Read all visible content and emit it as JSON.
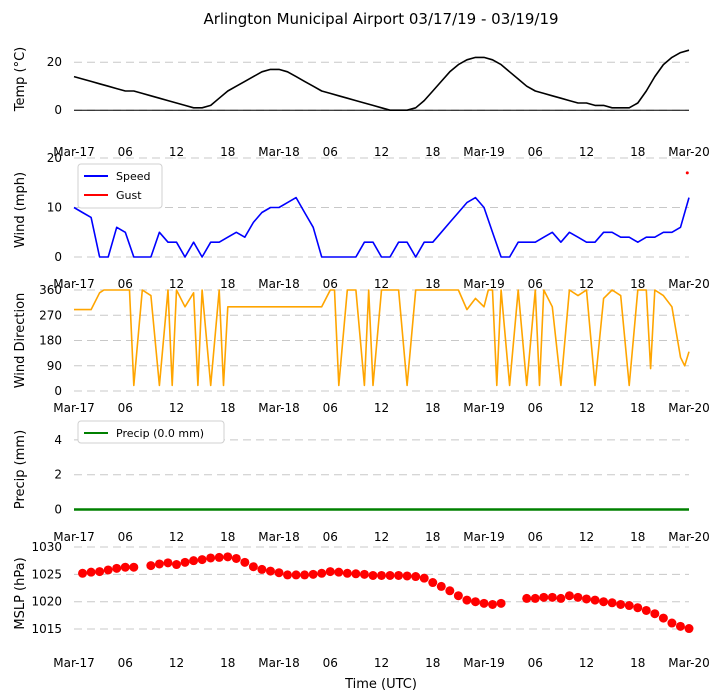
{
  "figure": {
    "title": "Arlington Municipal Airport 03/17/19 - 03/19/19",
    "xlabel": "Time (UTC)"
  },
  "chart_data": [
    {
      "type": "line",
      "name": "temperature",
      "ylabel": "Temp ($^\\circ$C)",
      "ylabel_display": "Temp (°C)",
      "ylim": [
        -2,
        28
      ],
      "yticks": [
        0,
        20
      ],
      "zero_line": true,
      "x_range": [
        0,
        72
      ],
      "xtick_labels": [
        "Mar-17",
        "06",
        "12",
        "18",
        "Mar-18",
        "06",
        "12",
        "18",
        "Mar-19",
        "06",
        "12",
        "18",
        "Mar-20"
      ],
      "series": [
        {
          "name": "Temp",
          "color": "#000000",
          "x": [
            0,
            1,
            2,
            3,
            4,
            5,
            6,
            7,
            8,
            9,
            10,
            11,
            12,
            13,
            14,
            15,
            16,
            17,
            18,
            19,
            20,
            21,
            22,
            23,
            24,
            25,
            26,
            27,
            28,
            29,
            30,
            31,
            32,
            33,
            34,
            35,
            36,
            37,
            38,
            39,
            40,
            41,
            42,
            43,
            44,
            45,
            46,
            47,
            48,
            49,
            50,
            51,
            52,
            53,
            54,
            55,
            56,
            57,
            58,
            59,
            60,
            61,
            62,
            63,
            64,
            65,
            66,
            67,
            68,
            69,
            70,
            71,
            72
          ],
          "values": [
            14,
            13,
            12,
            11,
            10,
            9,
            8,
            8,
            7,
            6,
            5,
            4,
            3,
            2,
            1,
            1,
            2,
            5,
            8,
            10,
            12,
            14,
            16,
            17,
            17,
            16,
            14,
            12,
            10,
            8,
            7,
            6,
            5,
            4,
            3,
            2,
            1,
            0,
            0,
            0,
            1,
            4,
            8,
            12,
            16,
            19,
            21,
            22,
            22,
            21,
            19,
            16,
            13,
            10,
            8,
            7,
            6,
            5,
            4,
            3,
            3,
            2,
            2,
            1,
            1,
            1,
            3,
            8,
            14,
            19,
            22,
            24,
            25
          ]
        }
      ]
    },
    {
      "type": "line",
      "name": "wind",
      "ylabel": "Wind (mph)",
      "ylim": [
        -1,
        20
      ],
      "yticks": [
        0,
        10,
        20
      ],
      "x_range": [
        0,
        72
      ],
      "xtick_labels": [
        "Mar-17",
        "06",
        "12",
        "18",
        "Mar-18",
        "06",
        "12",
        "18",
        "Mar-19",
        "06",
        "12",
        "18",
        "Mar-20"
      ],
      "legend": [
        "Speed",
        "Gust"
      ],
      "series": [
        {
          "name": "Speed",
          "color": "#0000ff",
          "x": [
            0,
            1,
            2,
            3,
            4,
            5,
            6,
            7,
            8,
            9,
            10,
            11,
            12,
            13,
            14,
            15,
            16,
            17,
            18,
            19,
            20,
            21,
            22,
            23,
            24,
            25,
            26,
            27,
            28,
            29,
            30,
            31,
            32,
            33,
            34,
            35,
            36,
            37,
            38,
            39,
            40,
            41,
            42,
            43,
            44,
            45,
            46,
            47,
            48,
            49,
            50,
            51,
            52,
            53,
            54,
            55,
            56,
            57,
            58,
            59,
            60,
            61,
            62,
            63,
            64,
            65,
            66,
            67,
            68,
            69,
            70,
            71,
            72
          ],
          "values": [
            10,
            9,
            8,
            0,
            0,
            6,
            5,
            0,
            0,
            0,
            5,
            3,
            3,
            0,
            3,
            0,
            3,
            3,
            4,
            5,
            4,
            7,
            9,
            10,
            10,
            11,
            12,
            9,
            6,
            0,
            0,
            0,
            0,
            0,
            3,
            3,
            0,
            0,
            3,
            3,
            0,
            3,
            3,
            5,
            7,
            9,
            11,
            12,
            10,
            5,
            0,
            0,
            3,
            3,
            3,
            4,
            5,
            3,
            5,
            4,
            3,
            3,
            5,
            5,
            4,
            4,
            3,
            4,
            4,
            5,
            5,
            6,
            12
          ]
        },
        {
          "name": "Gust",
          "color": "#ff0000",
          "x": [
            71.8
          ],
          "values": [
            17
          ]
        }
      ]
    },
    {
      "type": "line",
      "name": "wind_direction",
      "ylabel": "Wind Direction",
      "ylim": [
        0,
        360
      ],
      "yticks": [
        0,
        90,
        180,
        270,
        360
      ],
      "x_range": [
        0,
        72
      ],
      "xtick_labels": [
        "Mar-17",
        "06",
        "12",
        "18",
        "Mar-18",
        "06",
        "12",
        "18",
        "Mar-19",
        "06",
        "12",
        "18",
        "Mar-20"
      ],
      "series": [
        {
          "name": "Direction",
          "color": "#ffa500",
          "x": [
            0,
            2,
            3,
            3.5,
            6.5,
            7,
            8,
            9,
            10,
            11,
            11.5,
            12,
            13,
            14,
            14.5,
            15,
            16,
            17,
            17.5,
            18,
            20,
            22,
            24,
            26,
            28,
            29,
            30,
            30.5,
            31,
            32,
            33,
            34,
            34.5,
            35,
            36,
            37,
            38,
            39,
            40,
            40.5,
            41,
            42,
            43,
            44,
            45,
            46,
            47,
            48,
            48.5,
            49,
            49.5,
            50,
            51,
            52,
            53,
            54,
            54.5,
            55,
            56,
            57,
            58,
            59,
            60,
            61,
            62,
            63,
            64,
            65,
            66,
            67,
            67.5,
            68,
            69,
            70,
            71,
            71.5,
            72
          ],
          "values": [
            290,
            290,
            350,
            360,
            360,
            20,
            360,
            340,
            20,
            360,
            20,
            360,
            300,
            350,
            20,
            360,
            20,
            360,
            20,
            300,
            300,
            300,
            300,
            300,
            300,
            300,
            360,
            360,
            20,
            360,
            360,
            20,
            360,
            20,
            360,
            360,
            360,
            20,
            360,
            360,
            360,
            360,
            360,
            360,
            360,
            290,
            330,
            300,
            360,
            360,
            20,
            360,
            20,
            360,
            20,
            360,
            20,
            360,
            300,
            20,
            360,
            340,
            360,
            20,
            330,
            360,
            340,
            20,
            360,
            360,
            80,
            360,
            340,
            300,
            120,
            90,
            140
          ]
        }
      ]
    },
    {
      "type": "line",
      "name": "precip",
      "ylabel": "Precip (mm)",
      "ylim": [
        -0.2,
        4.8
      ],
      "yticks": [
        0,
        2,
        4
      ],
      "x_range": [
        0,
        72
      ],
      "xtick_labels": [
        "Mar-17",
        "06",
        "12",
        "18",
        "Mar-18",
        "06",
        "12",
        "18",
        "Mar-19",
        "06",
        "12",
        "18",
        "Mar-20"
      ],
      "legend": [
        "Precip (0.0 mm)"
      ],
      "series": [
        {
          "name": "Precip",
          "color": "#008000",
          "x": [
            0,
            72
          ],
          "values": [
            0,
            0
          ]
        }
      ]
    },
    {
      "type": "scatter",
      "name": "mslp",
      "ylabel": "MSLP (hPa)",
      "ylim": [
        1013,
        1030
      ],
      "yticks": [
        1015,
        1020,
        1025,
        1030
      ],
      "x_range": [
        0,
        72
      ],
      "xtick_labels": [
        "Mar-17",
        "06",
        "12",
        "18",
        "Mar-18",
        "06",
        "12",
        "18",
        "Mar-19",
        "06",
        "12",
        "18",
        "Mar-20"
      ],
      "series": [
        {
          "name": "MSLP",
          "color": "#ff0000",
          "x": [
            1,
            2,
            3,
            4,
            5,
            6,
            7,
            9,
            10,
            11,
            12,
            13,
            14,
            15,
            16,
            17,
            18,
            19,
            20,
            21,
            22,
            23,
            24,
            25,
            26,
            27,
            28,
            29,
            30,
            31,
            32,
            33,
            34,
            35,
            36,
            37,
            38,
            39,
            40,
            41,
            42,
            43,
            44,
            45,
            46,
            47,
            48,
            49,
            50,
            53,
            54,
            55,
            56,
            57,
            58,
            59,
            60,
            61,
            62,
            63,
            64,
            65,
            66,
            67,
            68,
            69,
            70,
            71,
            72
          ],
          "values": [
            1025.2,
            1025.4,
            1025.5,
            1025.8,
            1026.1,
            1026.3,
            1026.3,
            1026.6,
            1026.9,
            1027.1,
            1026.8,
            1027.2,
            1027.5,
            1027.7,
            1028,
            1028.1,
            1028.2,
            1027.9,
            1027.2,
            1026.4,
            1025.9,
            1025.6,
            1025.3,
            1024.9,
            1024.9,
            1024.9,
            1025,
            1025.2,
            1025.5,
            1025.4,
            1025.2,
            1025.1,
            1025,
            1024.8,
            1024.8,
            1024.8,
            1024.8,
            1024.7,
            1024.6,
            1024.3,
            1023.5,
            1022.8,
            1022,
            1021.1,
            1020.3,
            1020,
            1019.7,
            1019.5,
            1019.7,
            1020.6,
            1020.6,
            1020.8,
            1020.8,
            1020.6,
            1021.1,
            1020.8,
            1020.5,
            1020.3,
            1020,
            1019.8,
            1019.5,
            1019.3,
            1018.9,
            1018.4,
            1017.8,
            1017,
            1016.1,
            1015.5,
            1015.1
          ]
        }
      ]
    }
  ]
}
